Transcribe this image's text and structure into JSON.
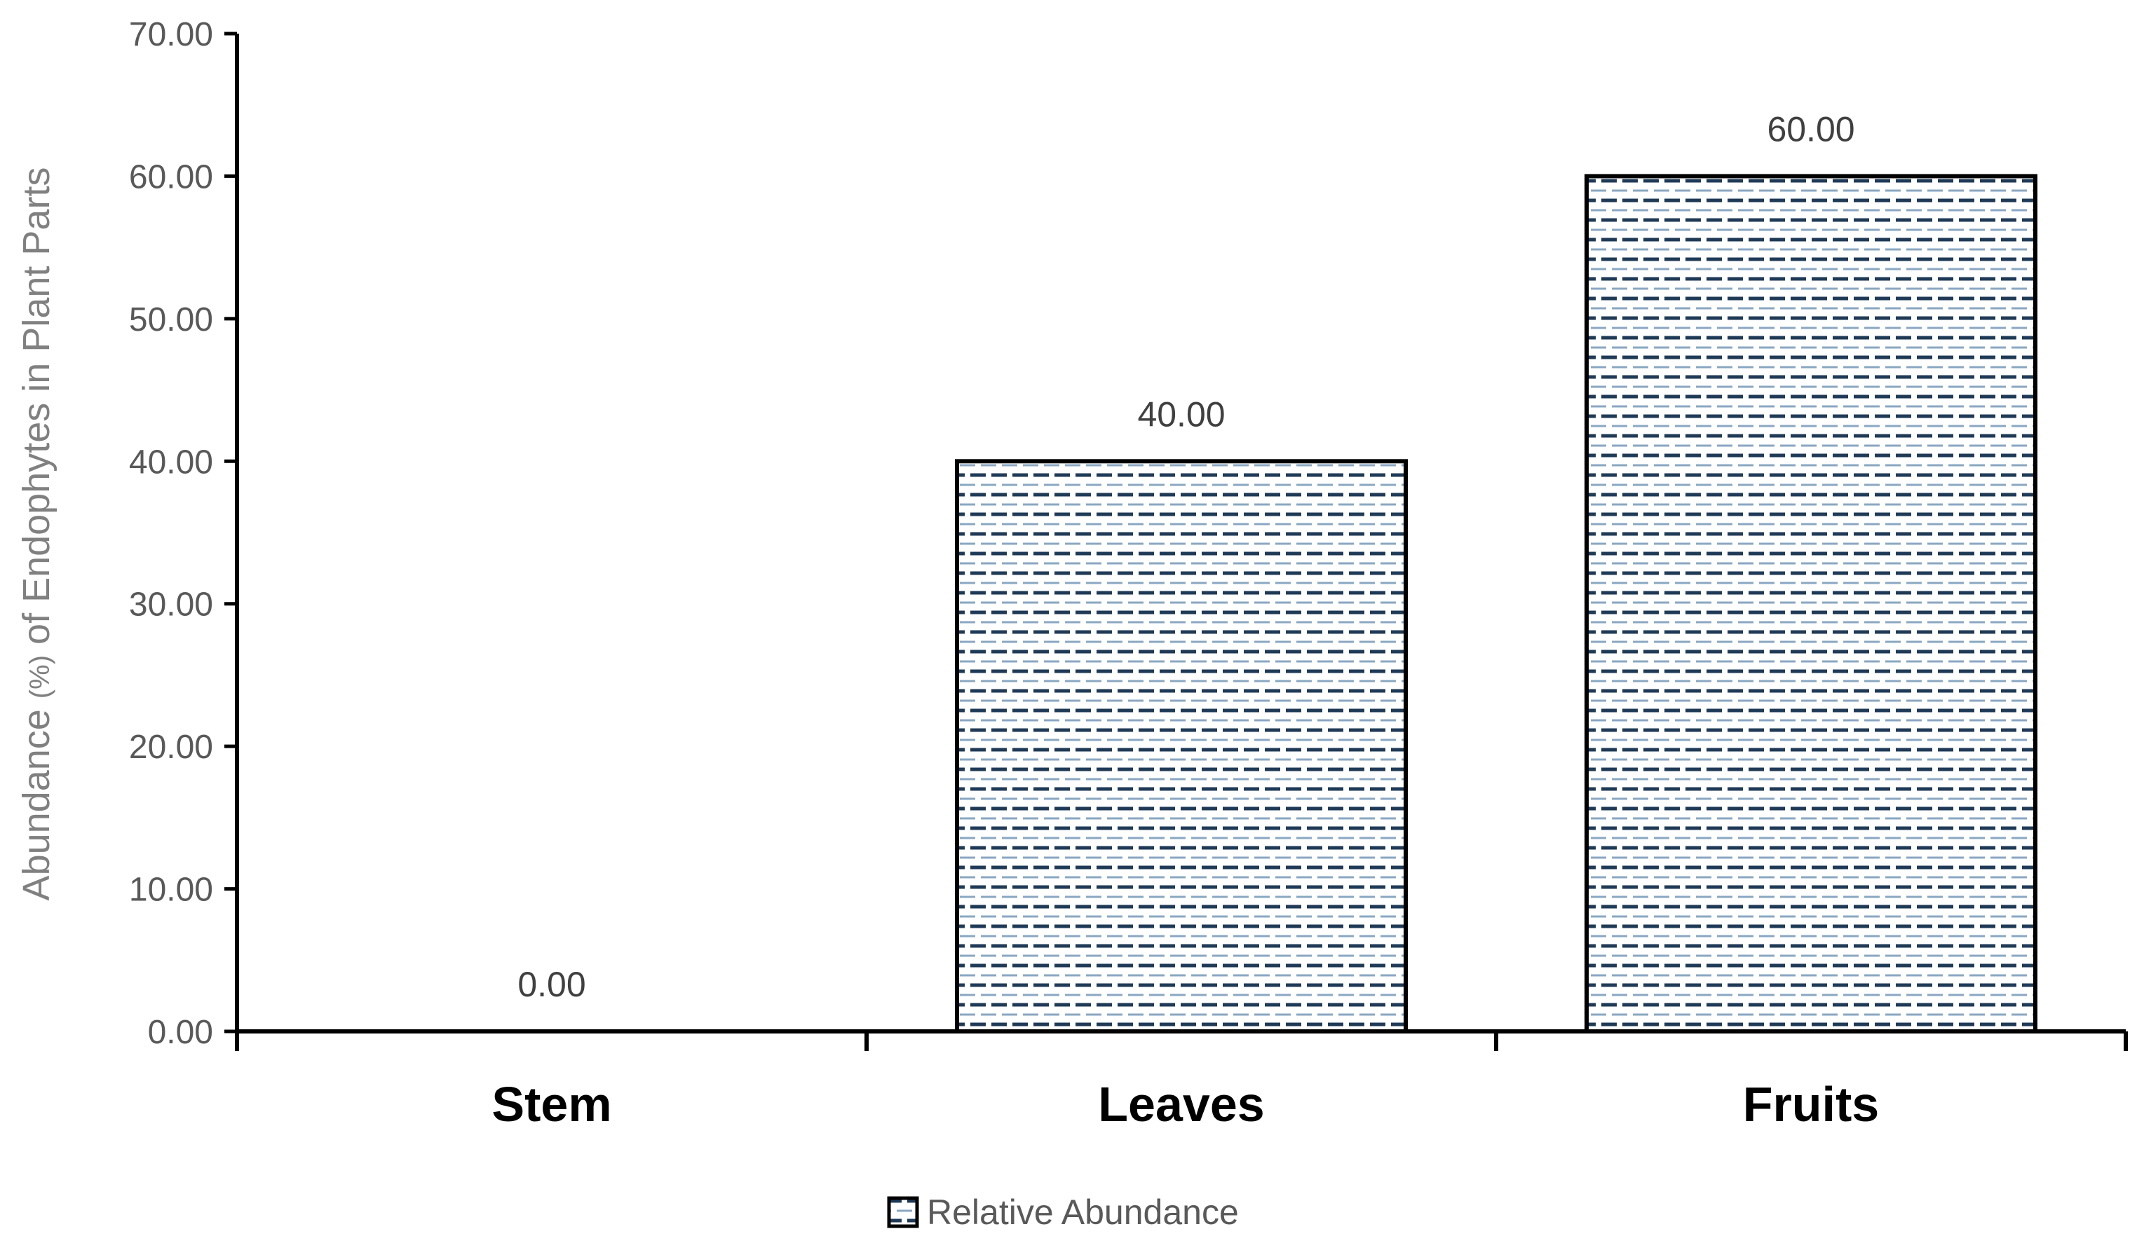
{
  "chart_data": {
    "type": "bar",
    "categories": [
      "Stem",
      "Leaves",
      "Fruits"
    ],
    "series": [
      {
        "name": "Relative Abundance",
        "values": [
          0.0,
          40.0,
          60.0
        ],
        "data_labels": [
          "0.00",
          "40.00",
          "60.00"
        ]
      }
    ],
    "title": "",
    "xlabel": "",
    "ylabel": {
      "before": "Abundance ",
      "unit": "(%)",
      "after": " of Endophytes in Plant Parts"
    },
    "ylim": [
      0,
      70
    ],
    "yticks": [
      "0.00",
      "10.00",
      "20.00",
      "30.00",
      "40.00",
      "50.00",
      "60.00",
      "70.00"
    ],
    "grid": false,
    "legend": {
      "position": "bottom",
      "label": "Relative Abundance"
    },
    "colors": {
      "bar_fill": "#ffffff",
      "bar_outline": "#000000",
      "pattern_dark": "#1f3a56",
      "pattern_light": "#8aa7c2",
      "axis": "#000000"
    }
  }
}
